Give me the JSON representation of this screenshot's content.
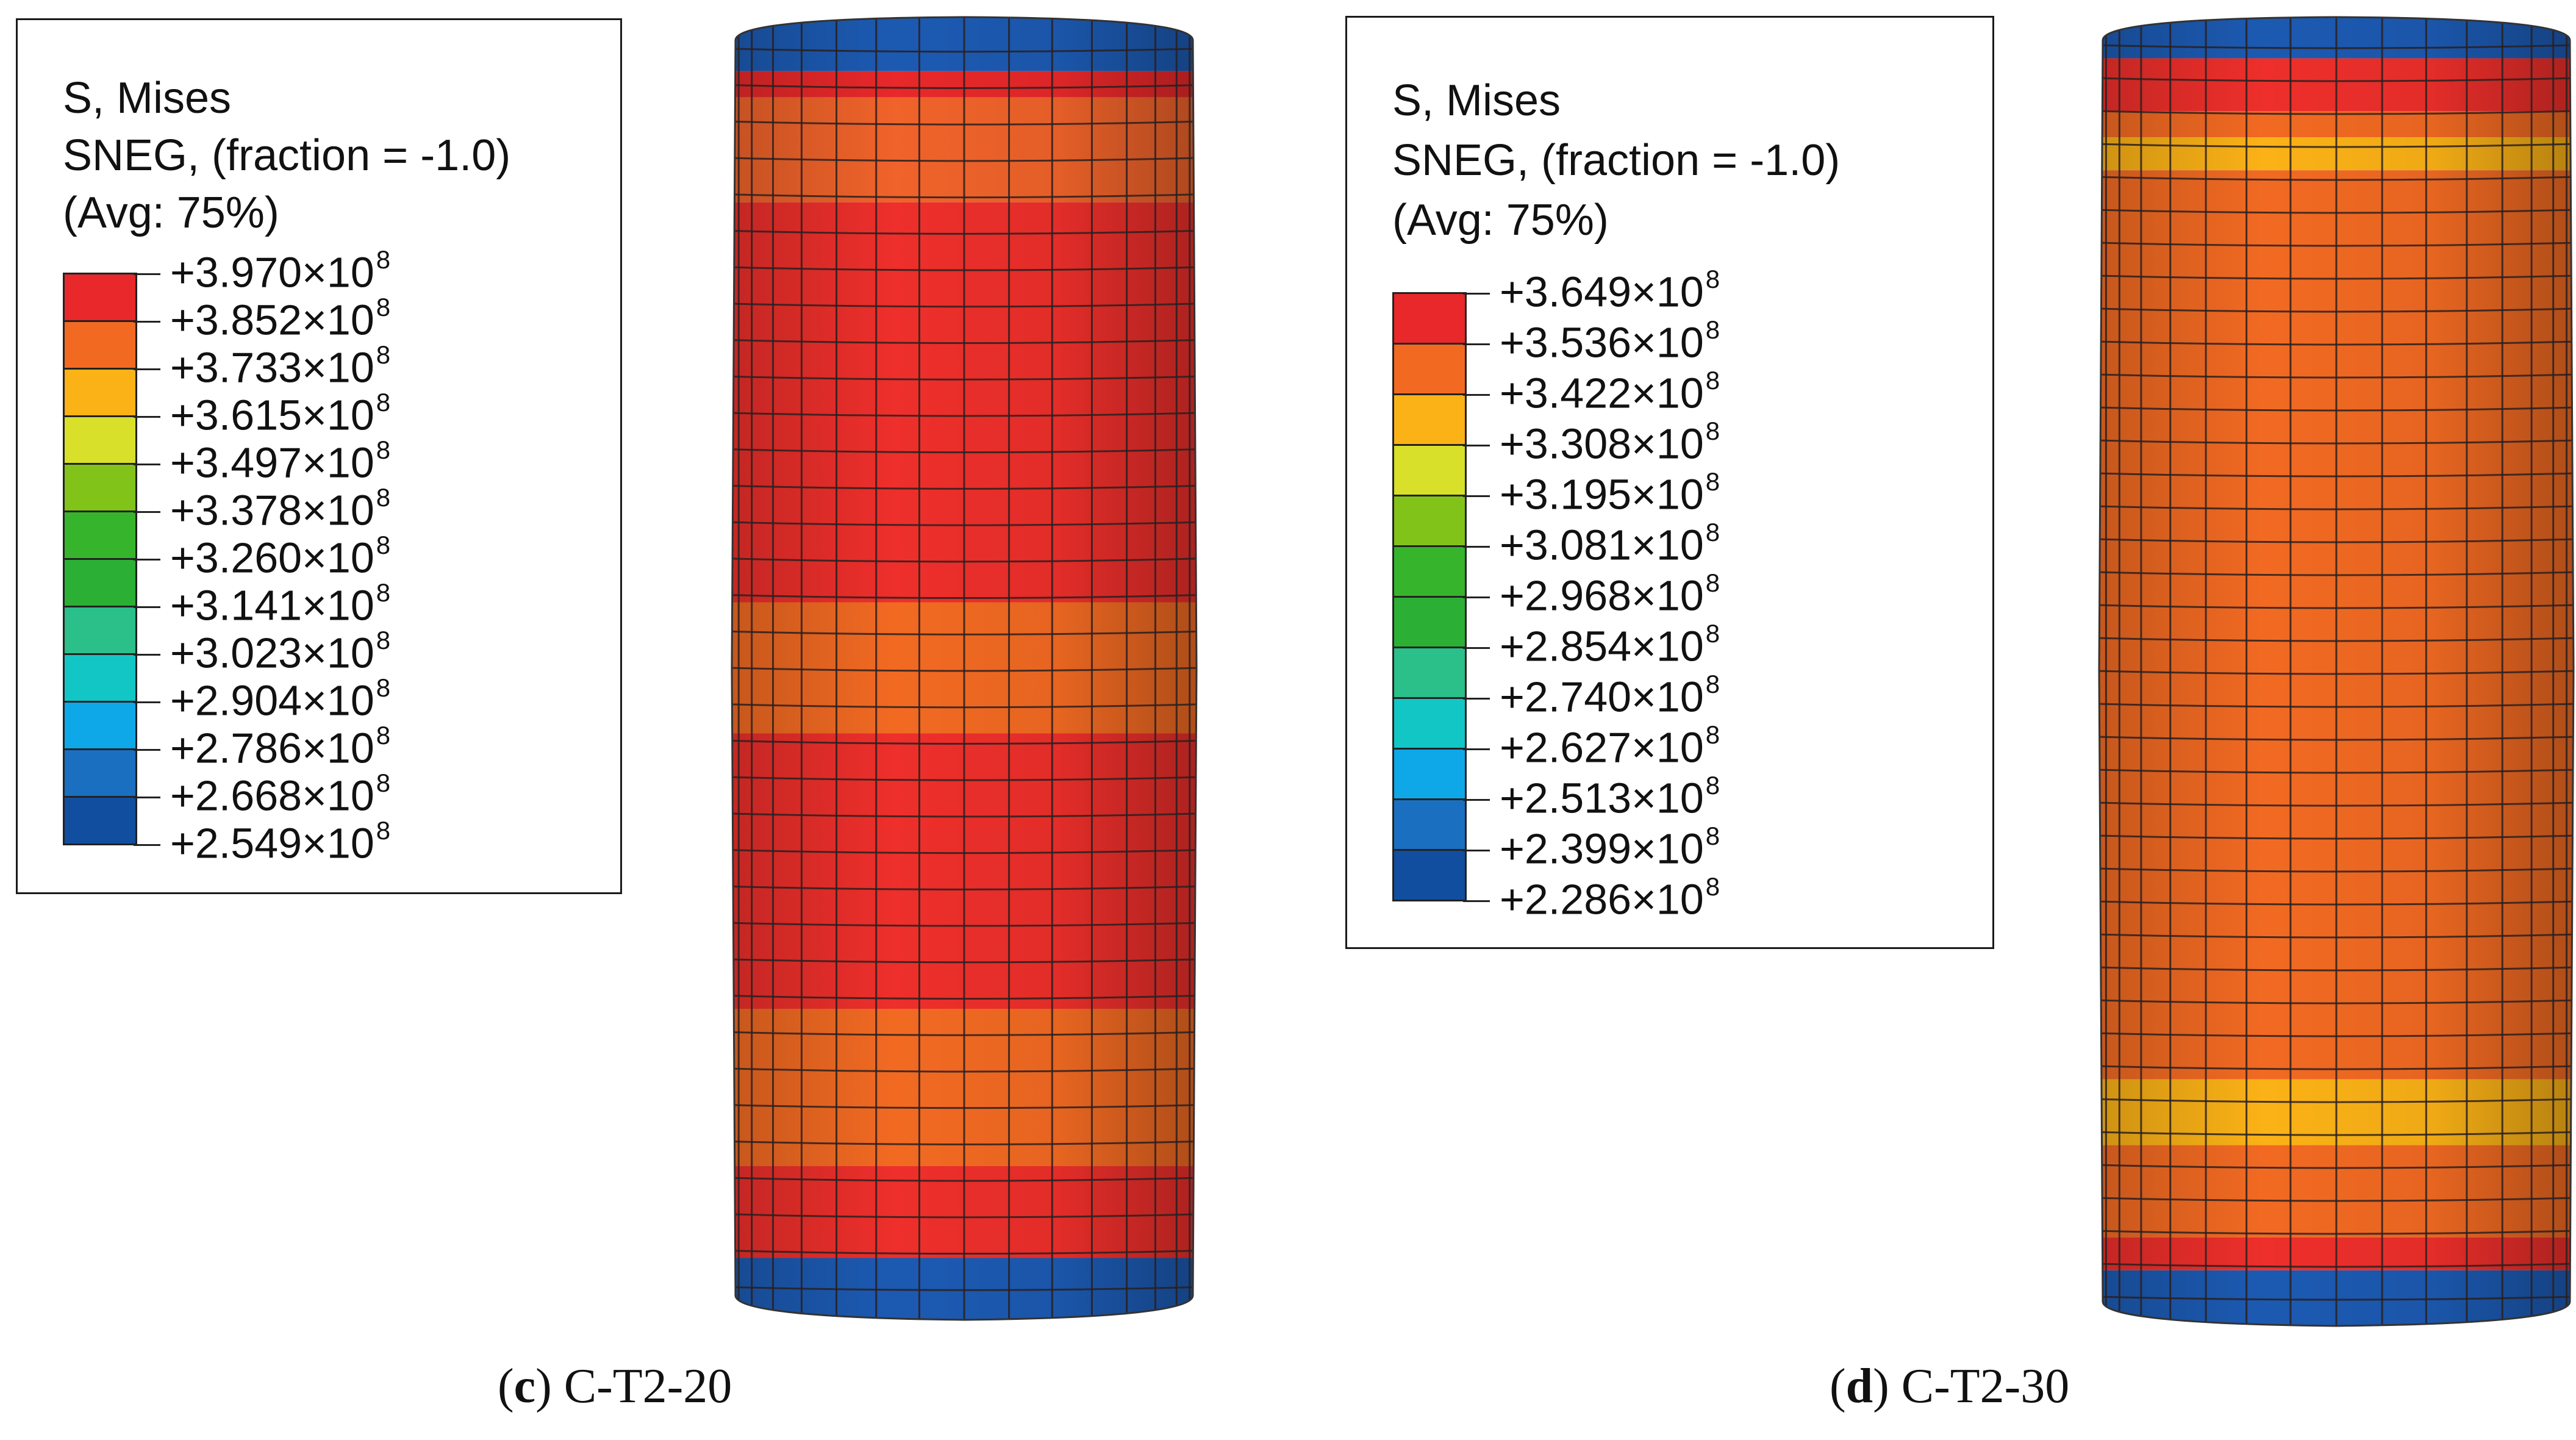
{
  "panels": [
    {
      "id": "c",
      "legend": {
        "title_lines": [
          "S, Mises",
          "SNEG, (fraction = -1.0)",
          "(Avg: 75%)"
        ],
        "values": [
          "+3.970×10",
          "+3.852×10",
          "+3.733×10",
          "+3.615×10",
          "+3.497×10",
          "+3.378×10",
          "+3.260×10",
          "+3.141×10",
          "+3.023×10",
          "+2.904×10",
          "+2.786×10",
          "+2.668×10",
          "+2.549×10"
        ],
        "exponent": "8",
        "colors": [
          "#e8282a",
          "#f26a22",
          "#fbb216",
          "#d8e02a",
          "#82c31a",
          "#36b52c",
          "#2bb035",
          "#2bbf8a",
          "#13c6c6",
          "#0ea8e8",
          "#1b6fc0",
          "#114ea0"
        ]
      },
      "caption_letter": "c",
      "caption_text": "C-T2-20"
    },
    {
      "id": "d",
      "legend": {
        "title_lines": [
          "S, Mises",
          "SNEG, (fraction = -1.0)",
          "(Avg: 75%)"
        ],
        "values": [
          "+3.649×10",
          "+3.536×10",
          "+3.422×10",
          "+3.308×10",
          "+3.195×10",
          "+3.081×10",
          "+2.968×10",
          "+2.854×10",
          "+2.740×10",
          "+2.627×10",
          "+2.513×10",
          "+2.399×10",
          "+2.286×10"
        ],
        "exponent": "8",
        "colors": [
          "#e8282a",
          "#f26a22",
          "#fbb216",
          "#d8e02a",
          "#82c31a",
          "#36b52c",
          "#2bb035",
          "#2bbf8a",
          "#13c6c6",
          "#0ea8e8",
          "#1b6fc0",
          "#114ea0"
        ]
      },
      "caption_letter": "d",
      "caption_text": "C-T2-30"
    }
  ]
}
